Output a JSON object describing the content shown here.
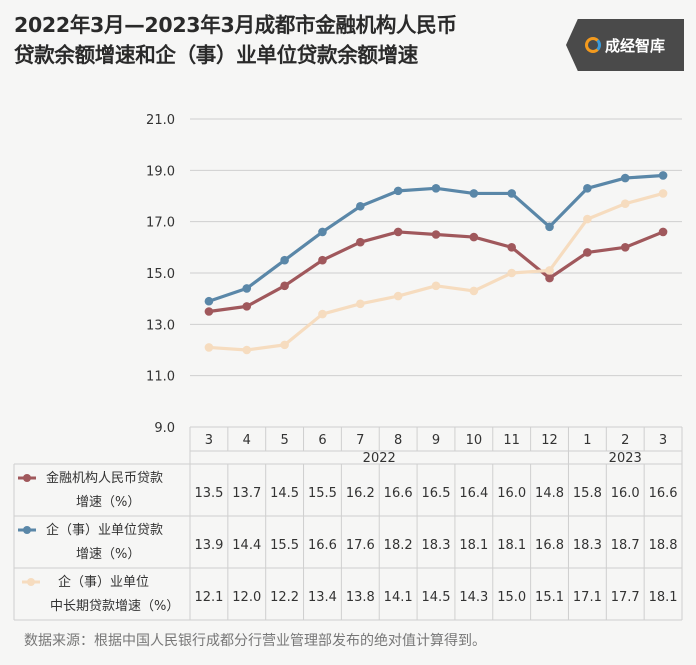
{
  "title_lines": [
    "2022年3月—2023年3月成都市金融机构人民币",
    "贷款余额增速和企（事）业单位贷款余额增速"
  ],
  "logo_text": "成经智库",
  "source": "数据来源：根据中国人民银行成都分行营业管理部发布的绝对值计算得到。",
  "colors": {
    "series1": "#a0585c",
    "series2": "#5a87a8",
    "series3": "#f6dcbf",
    "grid": "#cfcfcf"
  },
  "chart_data": {
    "type": "line",
    "x": [
      "3",
      "4",
      "5",
      "6",
      "7",
      "8",
      "9",
      "10",
      "11",
      "12",
      "1",
      "2",
      "3"
    ],
    "year_groups": [
      {
        "label": "2022",
        "start": 0,
        "end": 9
      },
      {
        "label": "2023",
        "start": 10,
        "end": 12
      }
    ],
    "ylim": [
      9.0,
      21.0
    ],
    "yticks": [
      "9.0",
      "11.0",
      "13.0",
      "15.0",
      "17.0",
      "19.0",
      "21.0"
    ],
    "grid": true,
    "series": [
      {
        "name_lines": [
          "金融机构人民币贷款",
          "增速（%）"
        ],
        "values": [
          13.5,
          13.7,
          14.5,
          15.5,
          16.2,
          16.6,
          16.5,
          16.4,
          16.0,
          14.8,
          15.8,
          16.0,
          16.6
        ],
        "labels": [
          "13.5",
          "13.7",
          "14.5",
          "15.5",
          "16.2",
          "16.6",
          "16.5",
          "16.4",
          "16.0",
          "14.8",
          "15.8",
          "16.0",
          "16.6"
        ]
      },
      {
        "name_lines": [
          "企（事）业单位贷款",
          "增速（%）"
        ],
        "values": [
          13.9,
          14.4,
          15.5,
          16.6,
          17.6,
          18.2,
          18.3,
          18.1,
          18.1,
          16.8,
          18.3,
          18.7,
          18.8
        ],
        "labels": [
          "13.9",
          "14.4",
          "15.5",
          "16.6",
          "17.6",
          "18.2",
          "18.3",
          "18.1",
          "18.1",
          "16.8",
          "18.3",
          "18.7",
          "18.8"
        ]
      },
      {
        "name_lines": [
          "企（事）业单位",
          "中长期贷款增速（%）"
        ],
        "values": [
          12.1,
          12.0,
          12.2,
          13.4,
          13.8,
          14.1,
          14.5,
          14.3,
          15.0,
          15.1,
          17.1,
          17.7,
          18.1
        ],
        "labels": [
          "12.1",
          "12.0",
          "12.2",
          "13.4",
          "13.8",
          "14.1",
          "14.5",
          "14.3",
          "15.0",
          "15.1",
          "17.1",
          "17.7",
          "18.1"
        ]
      }
    ]
  }
}
